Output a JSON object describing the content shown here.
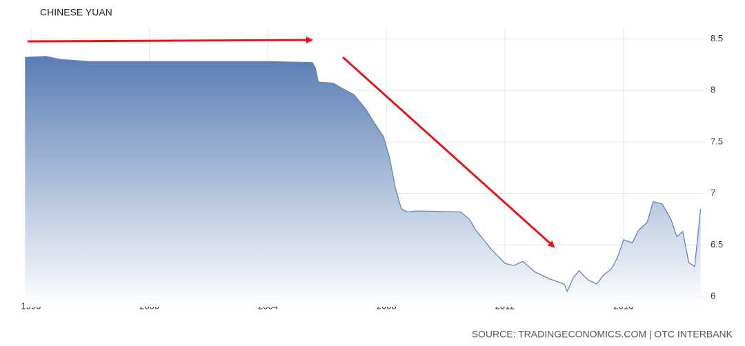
{
  "chart_data": {
    "type": "area",
    "title": "CHINESE YUAN",
    "source": "SOURCE: TRADINGECONOMICS.COM | OTC INTERBANK",
    "x": [
      1995.8,
      1996.5,
      1997,
      1998,
      2004,
      2005.5,
      2005.6,
      2005.7,
      2006.2,
      2006.5,
      2006.9,
      2007.3,
      2007.6,
      2007.9,
      2008.1,
      2008.3,
      2008.5,
      2008.7,
      2009,
      2010.5,
      2010.8,
      2011,
      2011.5,
      2012,
      2012.3,
      2012.6,
      2013,
      2013.5,
      2014,
      2014.1,
      2014.3,
      2014.5,
      2014.8,
      2015.1,
      2015.3,
      2015.6,
      2015.8,
      2016,
      2016.3,
      2016.5,
      2016.8,
      2017,
      2017.3,
      2017.6,
      2017.8,
      2018,
      2018.2,
      2018.4,
      2018.6
    ],
    "values": [
      8.32,
      8.33,
      8.3,
      8.28,
      8.28,
      8.27,
      8.22,
      8.08,
      8.07,
      8.02,
      7.96,
      7.82,
      7.68,
      7.55,
      7.35,
      7.05,
      6.85,
      6.82,
      6.83,
      6.82,
      6.75,
      6.65,
      6.47,
      6.32,
      6.3,
      6.34,
      6.24,
      6.17,
      6.12,
      6.05,
      6.18,
      6.25,
      6.16,
      6.12,
      6.2,
      6.27,
      6.38,
      6.55,
      6.52,
      6.64,
      6.72,
      6.92,
      6.9,
      6.75,
      6.58,
      6.63,
      6.33,
      6.29,
      6.85
    ],
    "color": "#6384b8",
    "xlim": [
      1995.77,
      2018.75
    ],
    "xticks": [
      1996,
      2000,
      2004,
      2008,
      2012,
      2016
    ],
    "ylim": [
      5.9,
      8.61
    ],
    "yticks": [
      6,
      6.5,
      7,
      7.5,
      8,
      8.5
    ],
    "grid": true
  }
}
